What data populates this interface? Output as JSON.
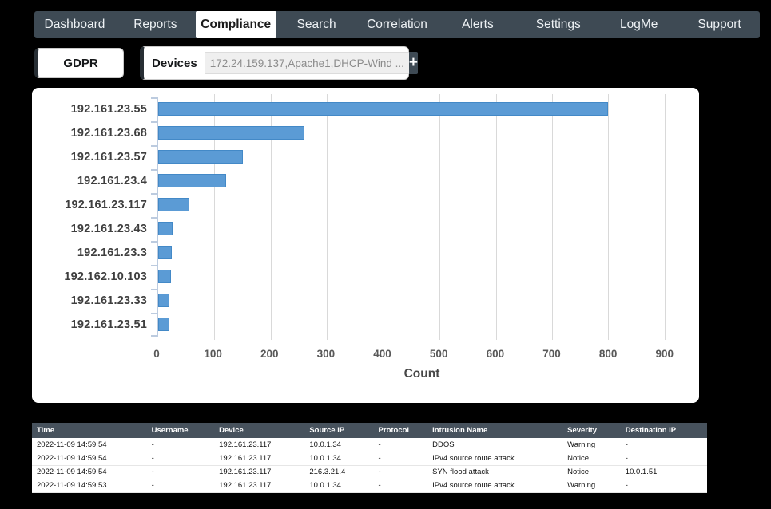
{
  "nav": {
    "items": [
      {
        "label": "Dashboard",
        "active": false
      },
      {
        "label": "Reports",
        "active": false
      },
      {
        "label": "Compliance",
        "active": true
      },
      {
        "label": "Search",
        "active": false
      },
      {
        "label": "Correlation",
        "active": false
      },
      {
        "label": "Alerts",
        "active": false
      },
      {
        "label": "Settings",
        "active": false
      },
      {
        "label": "LogMe",
        "active": false
      },
      {
        "label": "Support",
        "active": false
      }
    ]
  },
  "controls": {
    "gdpr_label": "GDPR",
    "devices_label": "Devices",
    "devices_value": "172.24.159.137,Apache1,DHCP-Wind ...",
    "add_button_label": "+"
  },
  "chart_data": {
    "type": "bar",
    "orientation": "horizontal",
    "categories": [
      "192.161.23.55",
      "192.161.23.68",
      "192.161.23.57",
      "192.161.23.4",
      "192.161.23.117",
      "192.161.23.43",
      "192.161.23.3",
      "192.162.10.103",
      "192.161.23.33",
      "192.161.23.51"
    ],
    "values": [
      800,
      260,
      150,
      120,
      55,
      26,
      24,
      23,
      20,
      20
    ],
    "title": "",
    "xlabel": "Count",
    "ylabel": "",
    "xlim": [
      0,
      940
    ],
    "xticks": [
      0,
      100,
      200,
      300,
      400,
      500,
      600,
      700,
      800,
      900
    ],
    "grid": true,
    "legend": false,
    "bar_color": "#5b9bd5",
    "bar_border_color": "#4389c7"
  },
  "table": {
    "columns": [
      "Time",
      "Username",
      "Device",
      "Source IP",
      "Protocol",
      "Intrusion Name",
      "Severity",
      "Destination IP"
    ],
    "col_widths_pct": [
      17,
      10,
      13.4,
      10.2,
      8,
      20,
      8.6,
      12.8
    ],
    "rows": [
      [
        "2022-11-09 14:59:54",
        "-",
        "192.161.23.117",
        "10.0.1.34",
        "-",
        "DDOS",
        "Warning",
        "-"
      ],
      [
        "2022-11-09 14:59:54",
        "-",
        "192.161.23.117",
        "10.0.1.34",
        "-",
        "IPv4 source route attack",
        "Notice",
        "-"
      ],
      [
        "2022-11-09 14:59:54",
        "-",
        "192.161.23.117",
        "216.3.21.4",
        "-",
        "SYN flood attack",
        "Notice",
        "10.0.1.51"
      ],
      [
        "2022-11-09 14:59:53",
        "-",
        "192.161.23.117",
        "10.0.1.34",
        "-",
        "IPv4 source route attack",
        "Warning",
        "-"
      ]
    ]
  },
  "colors": {
    "page_background": "#000000",
    "nav_background": "#3e4a54",
    "active_tab_background": "#ffffff",
    "panel_background": "#ffffff",
    "accent_bar": "#272e34",
    "bar_fill": "#5b9bd5",
    "table_header_background": "#47525d"
  }
}
